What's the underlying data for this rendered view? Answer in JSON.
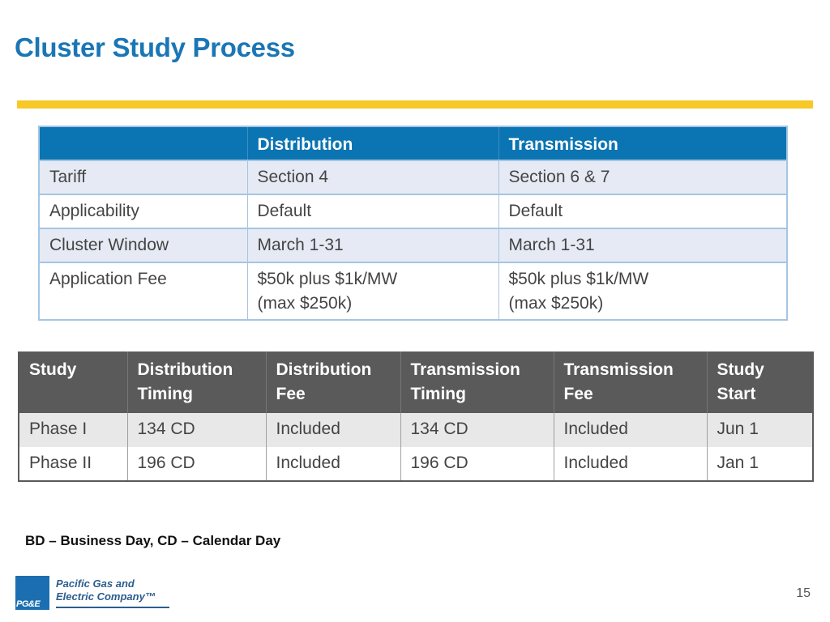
{
  "title": "Cluster Study Process",
  "table1": {
    "headers": [
      "",
      "Distribution",
      "Transmission"
    ],
    "rows": [
      [
        "Tariff",
        "Section 4",
        "Section 6 & 7"
      ],
      [
        "Applicability",
        "Default",
        "Default"
      ],
      [
        "Cluster Window",
        "March 1-31",
        "March 1-31"
      ],
      [
        "Application Fee",
        "$50k plus $1k/MW\n(max $250k)",
        "$50k plus $1k/MW\n(max $250k)"
      ]
    ]
  },
  "table2": {
    "headers": [
      "Study",
      "Distribution\nTiming",
      "Distribution\nFee",
      "Transmission\nTiming",
      "Transmission\nFee",
      "Study\nStart"
    ],
    "rows": [
      [
        "Phase I",
        "134 CD",
        "Included",
        "134 CD",
        "Included",
        "Jun 1"
      ],
      [
        "Phase II",
        "196 CD",
        "Included",
        "196 CD",
        "Included",
        "Jan 1"
      ]
    ]
  },
  "footnote": "BD – Business Day, CD – Calendar Day",
  "logo": {
    "mark_text": "PG&E",
    "name_line1": "Pacific Gas and",
    "name_line2": "Electric Company™"
  },
  "page_number": "15",
  "colors": {
    "title_blue": "#1a76b5",
    "accent_yellow": "#f6c928",
    "table1_header": "#0b74b2",
    "table2_header": "#5a5a5a"
  }
}
